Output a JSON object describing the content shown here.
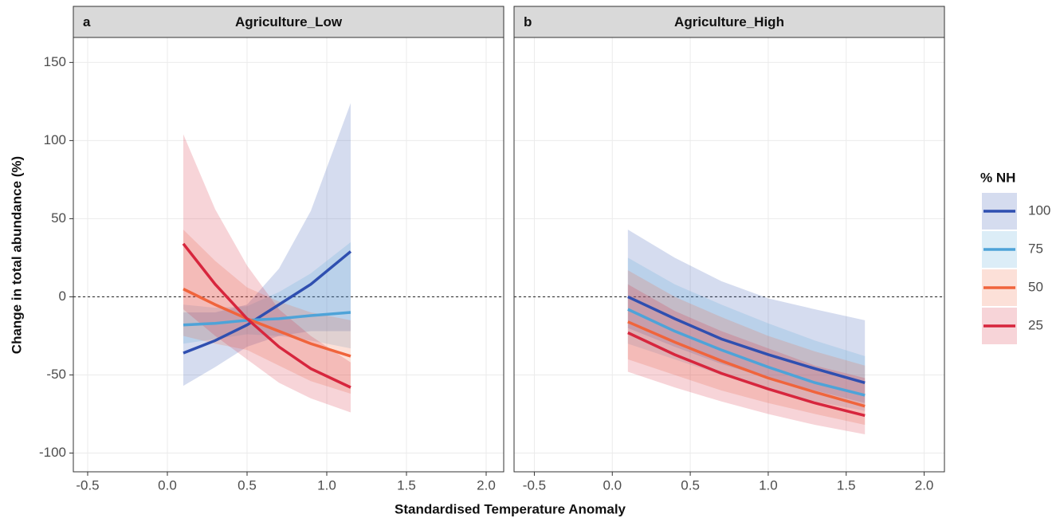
{
  "figure": {
    "xlabel": "Standardised Temperature Anomaly",
    "ylabel": "Change in total abundance (%)",
    "legend_title": "% NH"
  },
  "chart_data": [
    {
      "type": "line",
      "label": "a",
      "title": "Agriculture_Low",
      "hline": 0,
      "grid": true,
      "x": [
        0.1,
        0.3,
        0.5,
        0.7,
        0.9,
        1.15
      ],
      "xlim": [
        -0.59,
        2.11
      ],
      "ylim": [
        -112,
        166
      ],
      "xticks": [
        -0.5,
        {
          "value": 0,
          "label": "0.0"
        },
        0.5,
        {
          "value": 1,
          "label": "1.0"
        },
        1.5,
        {
          "value": 2,
          "label": "2.0"
        }
      ],
      "yticks": [
        -100,
        -50,
        0,
        50,
        100,
        150
      ],
      "series": [
        {
          "name": "100",
          "color": "#2f4fb0",
          "values": [
            -36,
            -28,
            -18,
            -5,
            8,
            29
          ],
          "lower": [
            -57,
            -45,
            -32,
            -25,
            -22,
            -22
          ],
          "upper": [
            -10,
            -10,
            -5,
            18,
            55,
            124
          ]
        },
        {
          "name": "75",
          "color": "#4ea3d8",
          "values": [
            -18,
            -17,
            -15,
            -14,
            -12,
            -10
          ],
          "lower": [
            -30,
            -27,
            -24,
            -25,
            -28,
            -33
          ],
          "upper": [
            -5,
            -7,
            -6,
            3,
            15,
            35
          ]
        },
        {
          "name": "50",
          "color": "#f0643c",
          "values": [
            5,
            -5,
            -14,
            -22,
            -30,
            -38
          ],
          "lower": [
            -25,
            -30,
            -34,
            -44,
            -54,
            -62
          ],
          "upper": [
            43,
            23,
            6,
            -3,
            -10,
            -15
          ]
        },
        {
          "name": "25",
          "color": "#d7263d",
          "values": [
            34,
            8,
            -14,
            -32,
            -46,
            -58
          ],
          "lower": [
            -8,
            -25,
            -40,
            -55,
            -65,
            -74
          ],
          "upper": [
            104,
            56,
            20,
            -8,
            -25,
            -42
          ]
        }
      ]
    },
    {
      "type": "line",
      "label": "b",
      "title": "Agriculture_High",
      "hline": 0,
      "grid": true,
      "x": [
        0.1,
        0.4,
        0.7,
        1.0,
        1.3,
        1.62
      ],
      "xlim": [
        -0.63,
        2.13
      ],
      "ylim": [
        -112,
        166
      ],
      "xticks": [
        -0.5,
        {
          "value": 0,
          "label": "0.0"
        },
        0.5,
        {
          "value": 1,
          "label": "1.0"
        },
        1.5,
        {
          "value": 2,
          "label": "2.0"
        }
      ],
      "yticks": [
        -100,
        -50,
        0,
        50,
        100,
        150
      ],
      "series": [
        {
          "color": "#2f4fb0",
          "values": [
            0,
            -14,
            -27,
            -37,
            -46,
            -55
          ],
          "lower": [
            -20,
            -32,
            -43,
            -52,
            -60,
            -68
          ],
          "upper": [
            43,
            25,
            10,
            -1,
            -8,
            -15
          ]
        },
        {
          "color": "#4ea3d8",
          "values": [
            -8,
            -22,
            -34,
            -45,
            -55,
            -63
          ],
          "lower": [
            -30,
            -40,
            -50,
            -60,
            -67,
            -73
          ],
          "upper": [
            25,
            8,
            -5,
            -17,
            -28,
            -38
          ]
        },
        {
          "color": "#f0643c",
          "values": [
            -16,
            -29,
            -41,
            -52,
            -61,
            -70
          ],
          "lower": [
            -40,
            -50,
            -60,
            -68,
            -75,
            -82
          ],
          "upper": [
            17,
            0,
            -13,
            -25,
            -35,
            -44
          ]
        },
        {
          "color": "#d7263d",
          "values": [
            -23,
            -37,
            -49,
            -59,
            -68,
            -76
          ],
          "lower": [
            -48,
            -58,
            -67,
            -75,
            -82,
            -88
          ],
          "upper": [
            8,
            -9,
            -22,
            -33,
            -44,
            -52
          ]
        }
      ]
    }
  ]
}
